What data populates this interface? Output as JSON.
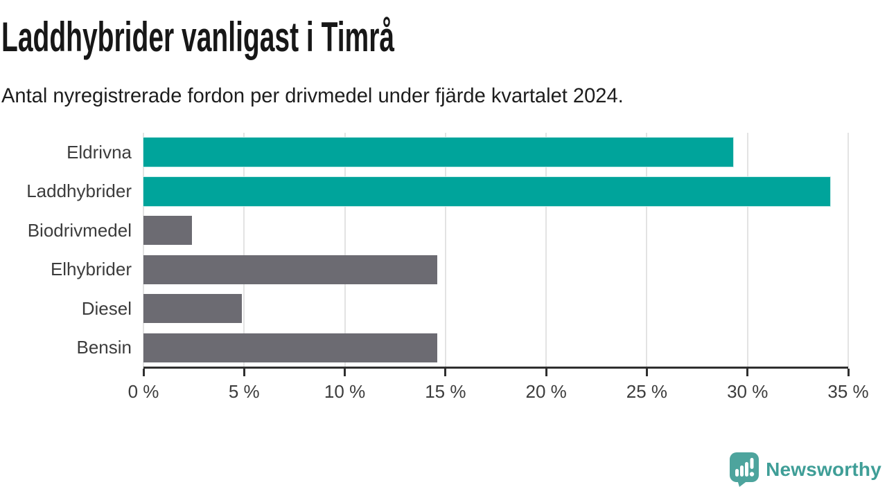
{
  "header": {
    "title": "Laddhybrider vanligast i Timrå",
    "subtitle": "Antal nyregistrerade fordon per drivmedel under fjärde kvartalet 2024."
  },
  "chart_data": {
    "type": "bar",
    "orientation": "horizontal",
    "title": "Laddhybrider vanligast i Timrå",
    "subtitle": "Antal nyregistrerade fordon per drivmedel under fjärde kvartalet 2024.",
    "categories": [
      "Eldrivna",
      "Laddhybrider",
      "Biodrivmedel",
      "Elhybrider",
      "Diesel",
      "Bensin"
    ],
    "values": [
      29.3,
      34.1,
      2.4,
      14.6,
      4.9,
      14.6
    ],
    "unit": "%",
    "xlim": [
      0,
      35
    ],
    "x_ticks": [
      0,
      5,
      10,
      15,
      20,
      25,
      30,
      35
    ],
    "x_tick_labels": [
      "0 %",
      "5 %",
      "10 %",
      "15 %",
      "20 %",
      "25 %",
      "30 %",
      "35 %"
    ],
    "grid": "vertical",
    "legend": "none",
    "highlighted_categories": [
      "Eldrivna",
      "Laddhybrider"
    ],
    "colors": {
      "highlight": "#00a49b",
      "default": "#6c6b72",
      "gridline": "#e3e3e3",
      "axis": "#2f2f2f",
      "label_text": "#3c3c3c"
    }
  },
  "footer": {
    "brand": "Newsworthy",
    "logo_icon": "newsworthy-speech-bubble-bar-chart-icon",
    "brand_color": "#3f9e97",
    "icon_color": "#4da49d"
  }
}
